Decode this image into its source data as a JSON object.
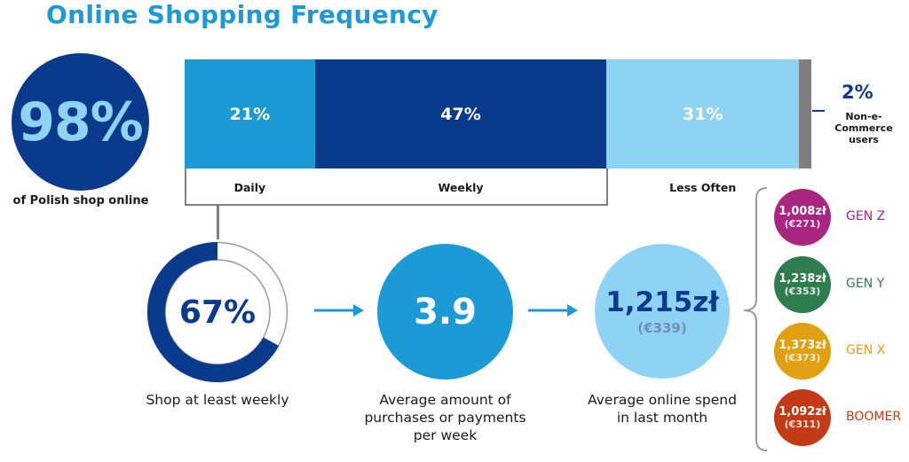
{
  "title": "Online Shopping Frequency",
  "headline": {
    "value": "98%",
    "caption": "of Polish shop online"
  },
  "non_ecommerce": {
    "value": "2%",
    "label": "Non-e-Commerce users"
  },
  "chart_data": [
    {
      "type": "bar",
      "orientation": "horizontal-stacked",
      "categories": [
        "Daily",
        "Weekly",
        "Less Often",
        ""
      ],
      "values": [
        21,
        47,
        31,
        2
      ],
      "data_labels": [
        "21%",
        "47%",
        "31%",
        ""
      ],
      "colors": [
        "#1b9ad6",
        "#0a3a8c",
        "#8fd3f4",
        "#7f7f7f"
      ],
      "title": "",
      "xlabel": "",
      "ylabel": "",
      "xlim": [
        0,
        101
      ]
    },
    {
      "type": "pie",
      "style": "donut",
      "values": [
        67,
        33
      ],
      "data_label": "67%",
      "colors": [
        "#0a3a8c",
        "#ffffff"
      ],
      "title": ""
    }
  ],
  "metrics": {
    "weekly_caption": "Shop at least weekly",
    "avg_purchases": {
      "value": "3.9",
      "caption_lines": [
        "Average amount of",
        "purchases or payments",
        "per week"
      ]
    },
    "avg_spend": {
      "value": "1,215zł",
      "sub": "(€339)",
      "caption_lines": [
        "Average online spend",
        "in last month"
      ]
    }
  },
  "generations": [
    {
      "label": "GEN Z",
      "pln": "1,008zł",
      "eur": "(€271)",
      "color": "#a8267f"
    },
    {
      "label": "GEN Y",
      "pln": "1,238zł",
      "eur": "(€353)",
      "color": "#2e7d4f"
    },
    {
      "label": "GEN X",
      "pln": "1,373zł",
      "eur": "(€373)",
      "color": "#e0a012"
    },
    {
      "label": "BOOMER",
      "pln": "1,092zł",
      "eur": "(€311)",
      "color": "#c23b16"
    }
  ],
  "colors": {
    "accent": "#1b9ad6",
    "navy": "#0a3a8c",
    "light_blue": "#8fd3f4",
    "grey": "#7f7f7f"
  }
}
